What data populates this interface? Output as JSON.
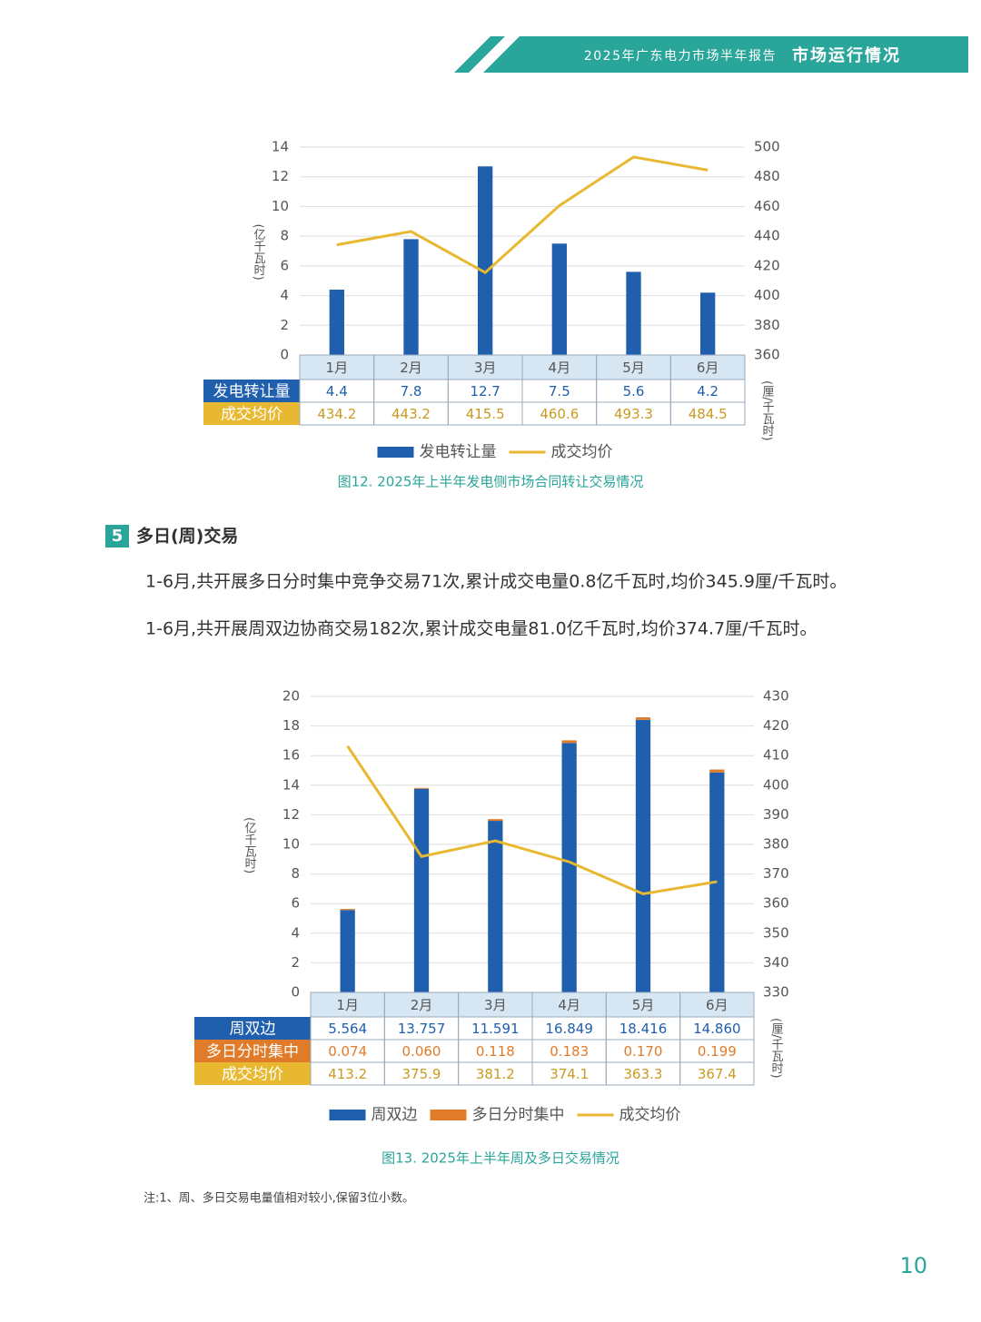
{
  "header": {
    "report": "2025年广东电力市场半年报告",
    "section": "市场运行情况"
  },
  "chart_data": [
    {
      "type": "bar",
      "categories": [
        "1月",
        "2月",
        "3月",
        "4月",
        "5月",
        "6月"
      ],
      "series": [
        {
          "name": "发电转让量",
          "color": "#1f5fad",
          "values": [
            4.4,
            7.8,
            12.7,
            7.5,
            5.6,
            4.2
          ]
        },
        {
          "name": "成交均价",
          "color": "#e8b830",
          "type": "line",
          "axis": "y2",
          "values": [
            434.2,
            443.2,
            415.5,
            460.6,
            493.3,
            484.5
          ]
        }
      ],
      "ylim": [
        0,
        14
      ],
      "yticks": [
        0,
        2,
        4,
        6,
        8,
        10,
        12,
        14
      ],
      "y2lim": [
        360,
        500
      ],
      "y2ticks": [
        360,
        380,
        400,
        420,
        440,
        460,
        480,
        500
      ],
      "y_label": "(亿千瓦时)",
      "y2_label": "(厘/千瓦时)",
      "grid": true,
      "legend": "bottom",
      "caption": "图12. 2025年上半年发电侧市场合同转让交易情况"
    },
    {
      "type": "bar",
      "stacked": true,
      "categories": [
        "1月",
        "2月",
        "3月",
        "4月",
        "5月",
        "6月"
      ],
      "series": [
        {
          "name": "周双边",
          "color": "#1f5fad",
          "values": [
            5.564,
            13.757,
            11.591,
            16.849,
            18.416,
            14.86
          ],
          "value_labels": [
            "5.564",
            "13.757",
            "11.591",
            "16.849",
            "18.416",
            "14.860"
          ]
        },
        {
          "name": "多日分时集中",
          "color": "#e07b2a",
          "values": [
            0.074,
            0.06,
            0.118,
            0.183,
            0.17,
            0.199
          ],
          "value_labels": [
            "0.074",
            "0.060",
            "0.118",
            "0.183",
            "0.170",
            "0.199"
          ]
        },
        {
          "name": "成交均价",
          "color": "#e8b830",
          "type": "line",
          "axis": "y2",
          "values": [
            413.2,
            375.9,
            381.2,
            374.1,
            363.3,
            367.4
          ]
        }
      ],
      "ylim": [
        0,
        20
      ],
      "yticks": [
        0,
        2,
        4,
        6,
        8,
        10,
        12,
        14,
        16,
        18,
        20
      ],
      "y2lim": [
        330,
        430
      ],
      "y2ticks": [
        330,
        340,
        350,
        360,
        370,
        380,
        390,
        400,
        410,
        420,
        430
      ],
      "y_label": "(亿千瓦时)",
      "y2_label": "(厘/千瓦时)",
      "grid": true,
      "legend": "bottom",
      "caption": "图13. 2025年上半年周及多日交易情况"
    }
  ],
  "section": {
    "number": "5",
    "title": "多日(周)交易"
  },
  "paragraphs": [
    "1-6月,共开展多日分时集中竞争交易71次,累计成交电量0.8亿千瓦时,均价345.9厘/千瓦时。",
    "1-6月,共开展周双边协商交易182次,累计成交电量81.0亿千瓦时,均价374.7厘/千瓦时。"
  ],
  "note": "注:1、周、多日交易电量值相对较小,保留3位小数。",
  "page_number": "10"
}
